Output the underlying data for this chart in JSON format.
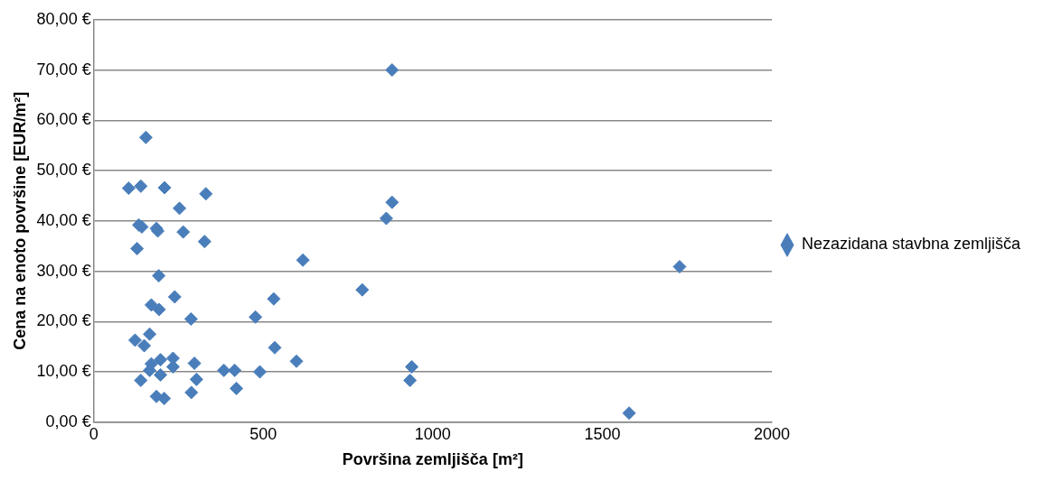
{
  "chart_data": {
    "type": "scatter",
    "xlabel": "Površina zemljišča [m²]",
    "ylabel": "Cena na enoto površine [EUR/m²]",
    "xlim": [
      0,
      2000
    ],
    "xticks": [
      0,
      500,
      1000,
      1500,
      2000
    ],
    "ylim": [
      0,
      80
    ],
    "yticks": [
      {
        "value": 0,
        "label": "0,00 €"
      },
      {
        "value": 10,
        "label": "10,00 €"
      },
      {
        "value": 20,
        "label": "20,00 €"
      },
      {
        "value": 30,
        "label": "30,00 €"
      },
      {
        "value": 40,
        "label": "40,00 €"
      },
      {
        "value": 50,
        "label": "50,00 €"
      },
      {
        "value": 60,
        "label": "60,00 €"
      },
      {
        "value": 70,
        "label": "70,00 €"
      },
      {
        "value": 80,
        "label": "80,00 €"
      }
    ],
    "grid": "y",
    "legend": "right",
    "marker": "diamond",
    "series": [
      {
        "name": "Nezazidana stavbna zemljišča",
        "color": "#4a7ebb",
        "x": [
          154,
          103,
          139,
          209,
          331,
          253,
          133,
          142,
          185,
          189,
          264,
          327,
          128,
          617,
          192,
          239,
          170,
          193,
          287,
          477,
          531,
          122,
          165,
          149,
          534,
          598,
          197,
          234,
          234,
          297,
          165,
          197,
          139,
          303,
          384,
          416,
          490,
          421,
          288,
          185,
          208,
          170,
          880,
          880,
          863,
          792,
          938,
          933,
          1728,
          1579
        ],
        "values": [
          56.6,
          46.5,
          46.9,
          46.6,
          45.4,
          42.5,
          39.2,
          38.8,
          38.5,
          38.0,
          37.8,
          35.9,
          34.5,
          32.2,
          29.1,
          24.9,
          23.3,
          22.4,
          20.5,
          20.9,
          24.5,
          16.3,
          17.5,
          15.2,
          14.8,
          12.1,
          12.4,
          12.7,
          11.0,
          11.7,
          10.3,
          9.4,
          8.3,
          8.5,
          10.3,
          10.3,
          10.0,
          6.7,
          5.9,
          5.1,
          4.7,
          11.6,
          70,
          43.7,
          40.5,
          26.3,
          11.0,
          8.3,
          30.9,
          1.8
        ]
      }
    ]
  }
}
